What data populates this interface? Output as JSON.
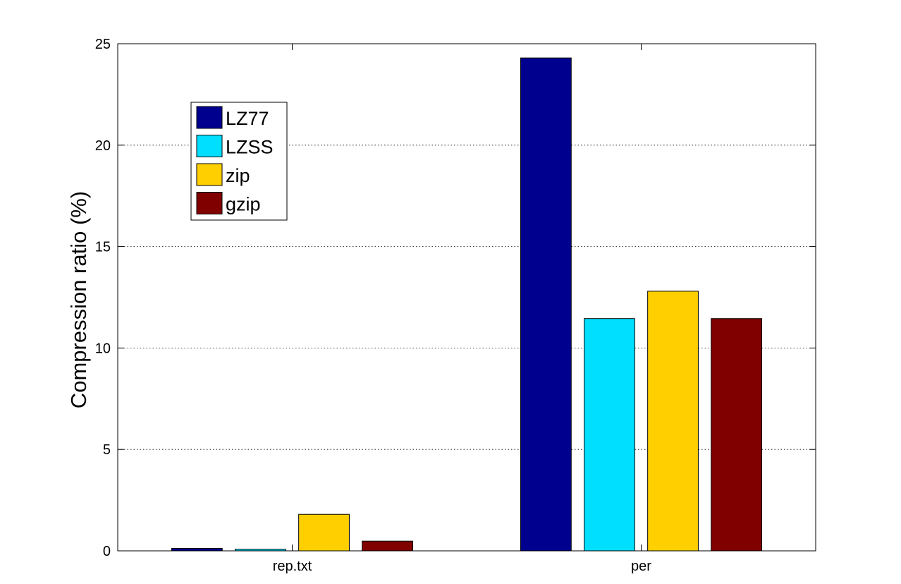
{
  "chart_data": {
    "type": "bar",
    "title": "",
    "xlabel": "",
    "ylabel": "Compression ratio (%)",
    "categories": [
      "rep.txt",
      "per"
    ],
    "series": [
      {
        "name": "LZ77",
        "color": "#00008f",
        "values": [
          0.12,
          24.3
        ]
      },
      {
        "name": "LZSS",
        "color": "#00dfff",
        "values": [
          0.08,
          11.45
        ]
      },
      {
        "name": "zip",
        "color": "#ffcf00",
        "values": [
          1.8,
          12.8
        ]
      },
      {
        "name": "gzip",
        "color": "#800000",
        "values": [
          0.48,
          11.45
        ]
      }
    ],
    "ylim": [
      0,
      25
    ],
    "yticks": [
      0,
      5,
      10,
      15,
      20,
      25
    ],
    "grid": "horizontal dotted",
    "legend_position": "top-left"
  }
}
